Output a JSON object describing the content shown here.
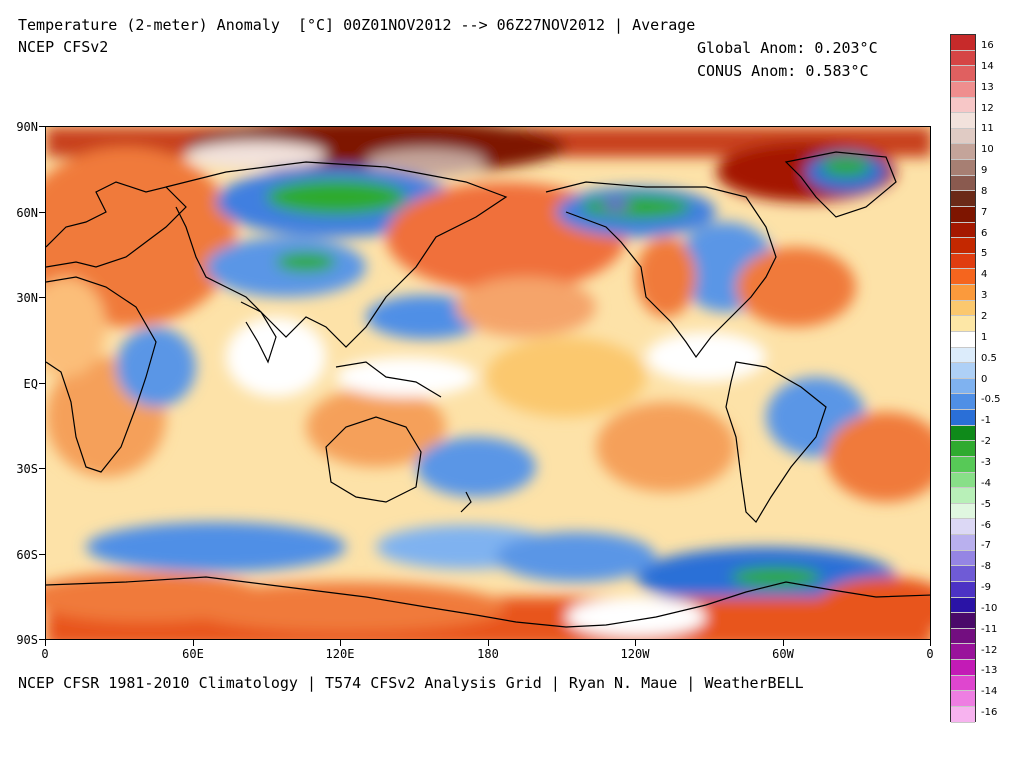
{
  "header": {
    "title": "Temperature (2-meter) Anomaly  [°C] 00Z01NOV2012 --> 06Z27NOV2012 | Average",
    "model": "NCEP CFSv2",
    "global_anom": "Global Anom: 0.203°C",
    "conus_anom": "CONUS Anom: 0.583°C"
  },
  "footer": {
    "text": "NCEP CFSR 1981-2010 Climatology | T574 CFSv2 Analysis Grid | Ryan N. Maue | WeatherBELL"
  },
  "map": {
    "lat_labels": [
      "90N",
      "60N",
      "30N",
      "EQ",
      "30S",
      "60S",
      "90S"
    ],
    "lon_labels": [
      "0",
      "60E",
      "120E",
      "180",
      "120W",
      "60W",
      "0"
    ]
  },
  "colorbar": {
    "labels": [
      "16",
      "14",
      "13",
      "12",
      "11",
      "10",
      "9",
      "8",
      "7",
      "6",
      "5",
      "4",
      "3",
      "2",
      "1",
      "0.5",
      "0",
      "-0.5",
      "-1",
      "-2",
      "-3",
      "-4",
      "-5",
      "-6",
      "-7",
      "-8",
      "-9",
      "-10",
      "-11",
      "-12",
      "-13",
      "-14",
      "-16"
    ],
    "colors": [
      "#c72a2a",
      "#d54545",
      "#e06060",
      "#ef8e8e",
      "#f7c7c7",
      "#f2e2dc",
      "#e0cbc4",
      "#c4a49a",
      "#a77f73",
      "#8a5a4f",
      "#6b2a18",
      "#7e1500",
      "#a41800",
      "#c42800",
      "#e03d10",
      "#f5651e",
      "#fb9a3c",
      "#fbc86e",
      "#fde7a6",
      "#ffffff",
      "#dcecfb",
      "#aed0f6",
      "#7fb2f0",
      "#4f8fe6",
      "#2a6fd7",
      "#0f8a1a",
      "#2faa2f",
      "#57c957",
      "#88df88",
      "#b8f0b8",
      "#e0f7e0",
      "#dcd8f5",
      "#b9b0ee",
      "#9585e4",
      "#6f5bd6",
      "#4c33c4",
      "#2a13a6",
      "#4a0a6a",
      "#730e80",
      "#99139b",
      "#c31bb6",
      "#df46cf",
      "#ee7ee2",
      "#f7b3ef"
    ]
  }
}
